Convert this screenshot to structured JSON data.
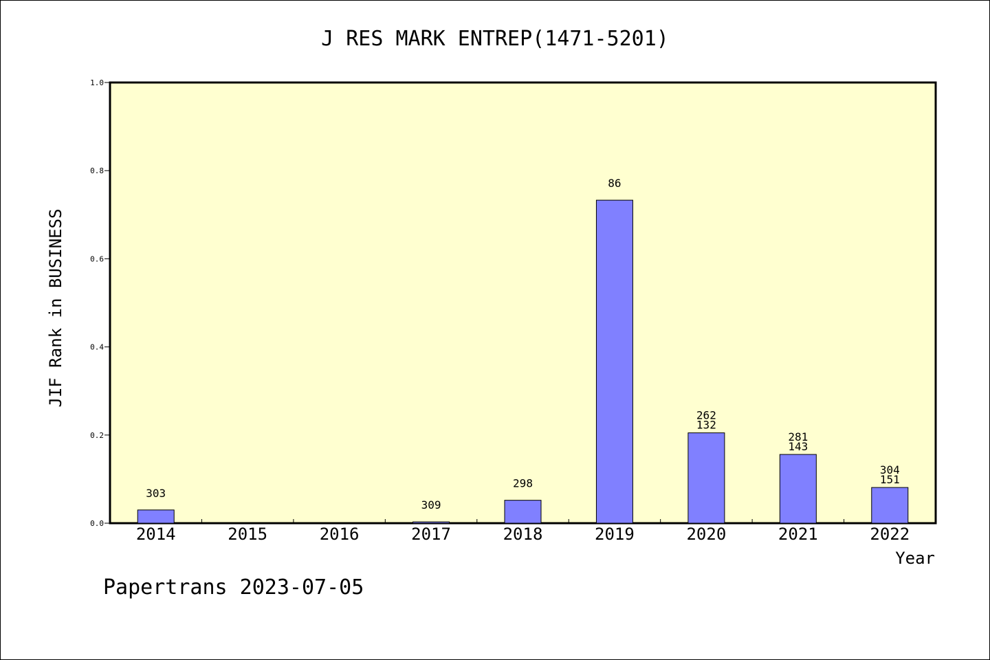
{
  "chart_data": {
    "type": "bar",
    "title": "J RES MARK ENTREP(1471-5201)",
    "xlabel": "Year",
    "ylabel": "JIF Rank in BUSINESS",
    "categories": [
      "2014",
      "2015",
      "2016",
      "2017",
      "2018",
      "2019",
      "2020",
      "2021",
      "2022"
    ],
    "values": [
      0.03,
      0,
      0,
      0.003,
      0.052,
      0.733,
      0.205,
      0.156,
      0.081
    ],
    "labels": [
      [
        "303"
      ],
      [],
      [],
      [
        "309"
      ],
      [
        "298"
      ],
      [
        "86"
      ],
      [
        "262",
        "132"
      ],
      [
        "281",
        "143"
      ],
      [
        "304",
        "151"
      ]
    ],
    "yticks": [
      "0.0",
      "0.2",
      "0.4",
      "0.6",
      "0.8",
      "1.0"
    ],
    "ylim": [
      0,
      1.0
    ],
    "grid": false,
    "plot_background": "#ffffd0",
    "bar_color": "#8080ff"
  },
  "footer": {
    "text": "Papertrans 2023-07-05"
  }
}
